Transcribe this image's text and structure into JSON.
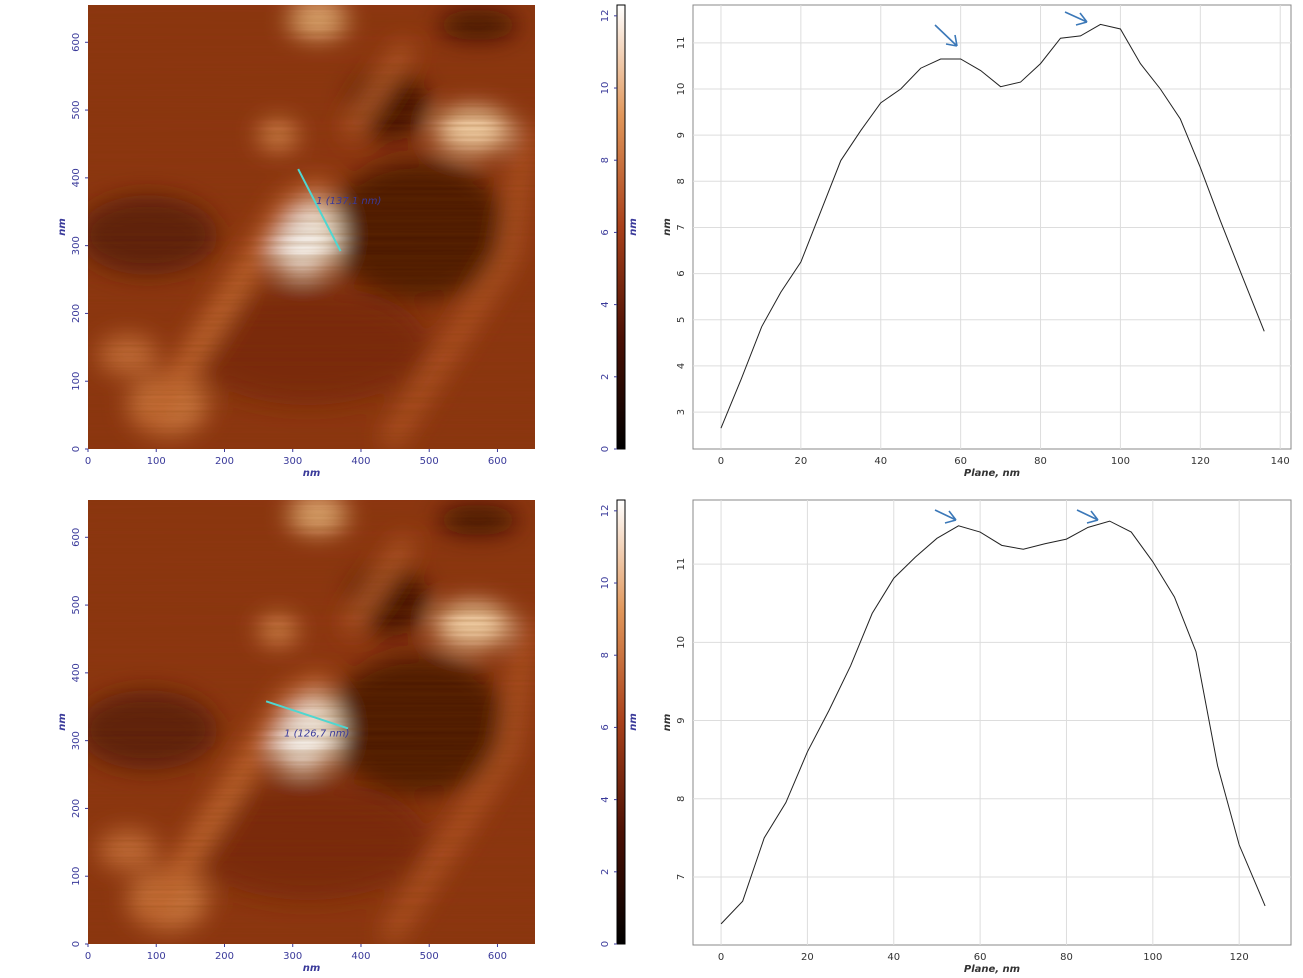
{
  "chart_data": [
    {
      "type": "image",
      "xlim": [
        0,
        655
      ],
      "ylim": [
        0,
        655
      ],
      "xticks": [
        0,
        100,
        200,
        300,
        400,
        500,
        600
      ],
      "yticks": [
        0,
        100,
        200,
        300,
        400,
        500,
        600
      ],
      "xlabel": "nm",
      "ylabel": "nm",
      "profile_line": {
        "x": [
          308,
          370
        ],
        "y": [
          413,
          292
        ],
        "label": "1 (137,1 nm)",
        "color": "#4fd6d0"
      }
    },
    {
      "type": "colorbar",
      "ylim": [
        0,
        12.3
      ],
      "yticks": [
        0,
        2,
        4,
        6,
        8,
        10,
        12
      ],
      "ylabel": "nm"
    },
    {
      "type": "line",
      "color": "#222222",
      "grid": true,
      "xlabel": "Plane, nm",
      "ylabel": "nm",
      "xlim": [
        -7,
        142.7
      ],
      "ylim": [
        2.2,
        11.82
      ],
      "xticks": [
        0,
        20,
        40,
        60,
        80,
        100,
        120,
        140
      ],
      "yticks": [
        3,
        4,
        5,
        6,
        7,
        8,
        9,
        10,
        11
      ],
      "x": [
        0,
        5,
        10.2,
        15,
        20,
        25,
        30,
        35,
        40,
        45,
        50,
        55,
        60,
        65,
        70,
        75,
        80,
        85,
        90,
        95,
        100,
        105,
        110,
        115,
        120,
        125,
        130,
        136
      ],
      "values": [
        2.65,
        3.7,
        4.85,
        5.6,
        6.25,
        7.35,
        8.45,
        9.1,
        9.7,
        10.0,
        10.45,
        10.65,
        10.65,
        10.4,
        10.05,
        10.15,
        10.55,
        11.1,
        11.15,
        11.4,
        11.3,
        10.55,
        10.0,
        9.35,
        8.3,
        7.15,
        6.05,
        4.75
      ]
    },
    {
      "type": "image",
      "xlim": [
        0,
        655
      ],
      "ylim": [
        0,
        655
      ],
      "xticks": [
        0,
        100,
        200,
        300,
        400,
        500,
        600
      ],
      "yticks": [
        0,
        100,
        200,
        300,
        400,
        500,
        600
      ],
      "xlabel": "nm",
      "ylabel": "nm",
      "profile_line": {
        "x": [
          261,
          381
        ],
        "y": [
          358,
          318
        ],
        "label": "1 (126,7 nm)",
        "color": "#4fd6d0"
      }
    },
    {
      "type": "colorbar",
      "ylim": [
        0,
        12.3
      ],
      "yticks": [
        0,
        2,
        4,
        6,
        8,
        10,
        12
      ],
      "ylabel": "nm"
    },
    {
      "type": "line",
      "color": "#222222",
      "grid": true,
      "xlabel": "Plane, nm",
      "ylabel": "nm",
      "xlim": [
        -6.5,
        132
      ],
      "ylim": [
        6.13,
        11.82
      ],
      "xticks": [
        0,
        20,
        40,
        60,
        80,
        100,
        120
      ],
      "yticks": [
        7,
        8,
        9,
        10,
        11
      ],
      "x": [
        0,
        5,
        10,
        15,
        20,
        25,
        30,
        35,
        40,
        45,
        50,
        55,
        60,
        65,
        70,
        75,
        80,
        85,
        90,
        95,
        100,
        105,
        110,
        115,
        120,
        126
      ],
      "values": [
        6.4,
        6.69,
        7.5,
        7.95,
        8.6,
        9.13,
        9.7,
        10.37,
        10.82,
        11.09,
        11.33,
        11.49,
        11.41,
        11.24,
        11.19,
        11.26,
        11.32,
        11.47,
        11.55,
        11.41,
        11.03,
        10.58,
        9.88,
        8.42,
        7.41,
        6.63
      ]
    }
  ]
}
